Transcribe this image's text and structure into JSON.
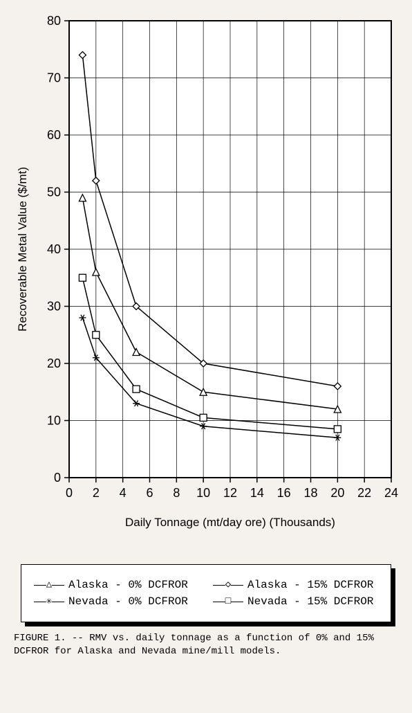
{
  "chart": {
    "type": "line",
    "y_label": "Recoverable Metal Value ($/mt)",
    "x_label": "Daily Tonnage (mt/day ore) (Thousands)",
    "xlim": [
      0,
      24
    ],
    "ylim": [
      0,
      80
    ],
    "xtick_step": 2,
    "ytick_step": 10,
    "background_color": "#ffffff",
    "grid_color": "#000000",
    "axis_color": "#000000",
    "axis_fontsize": 17,
    "tick_fontsize": 18,
    "label_font": "sans-serif",
    "tick_font": "sans-serif",
    "line_color": "#000000",
    "line_width": 1.5,
    "marker_size": 10,
    "series": [
      {
        "name": "Alaska - 0% DCFROR",
        "marker": "triangle",
        "x": [
          1,
          2,
          5,
          10,
          20
        ],
        "y": [
          49,
          36,
          22,
          15,
          12
        ]
      },
      {
        "name": "Alaska - 15% DCFROR",
        "marker": "diamond",
        "x": [
          1,
          2,
          5,
          10,
          20
        ],
        "y": [
          74,
          52,
          30,
          20,
          16
        ]
      },
      {
        "name": "Nevada - 0% DCFROR",
        "marker": "asterisk",
        "x": [
          1,
          2,
          5,
          10,
          20
        ],
        "y": [
          28,
          21,
          13,
          9,
          7
        ]
      },
      {
        "name": "Nevada - 15% DCFROR",
        "marker": "square",
        "x": [
          1,
          2,
          5,
          10,
          20
        ],
        "y": [
          35,
          25,
          15.5,
          10.5,
          8.5
        ]
      }
    ]
  },
  "legend": {
    "items": [
      {
        "label": "Alaska - 0% DCFROR",
        "marker": "triangle"
      },
      {
        "label": "Alaska - 15% DCFROR",
        "marker": "diamond"
      },
      {
        "label": "Nevada - 0% DCFROR",
        "marker": "asterisk"
      },
      {
        "label": "Nevada - 15% DCFROR",
        "marker": "square"
      }
    ]
  },
  "caption": "FIGURE 1. -- RMV vs. daily tonnage as a function of 0% and 15% DCFROR for Alaska and Nevada mine/mill models."
}
